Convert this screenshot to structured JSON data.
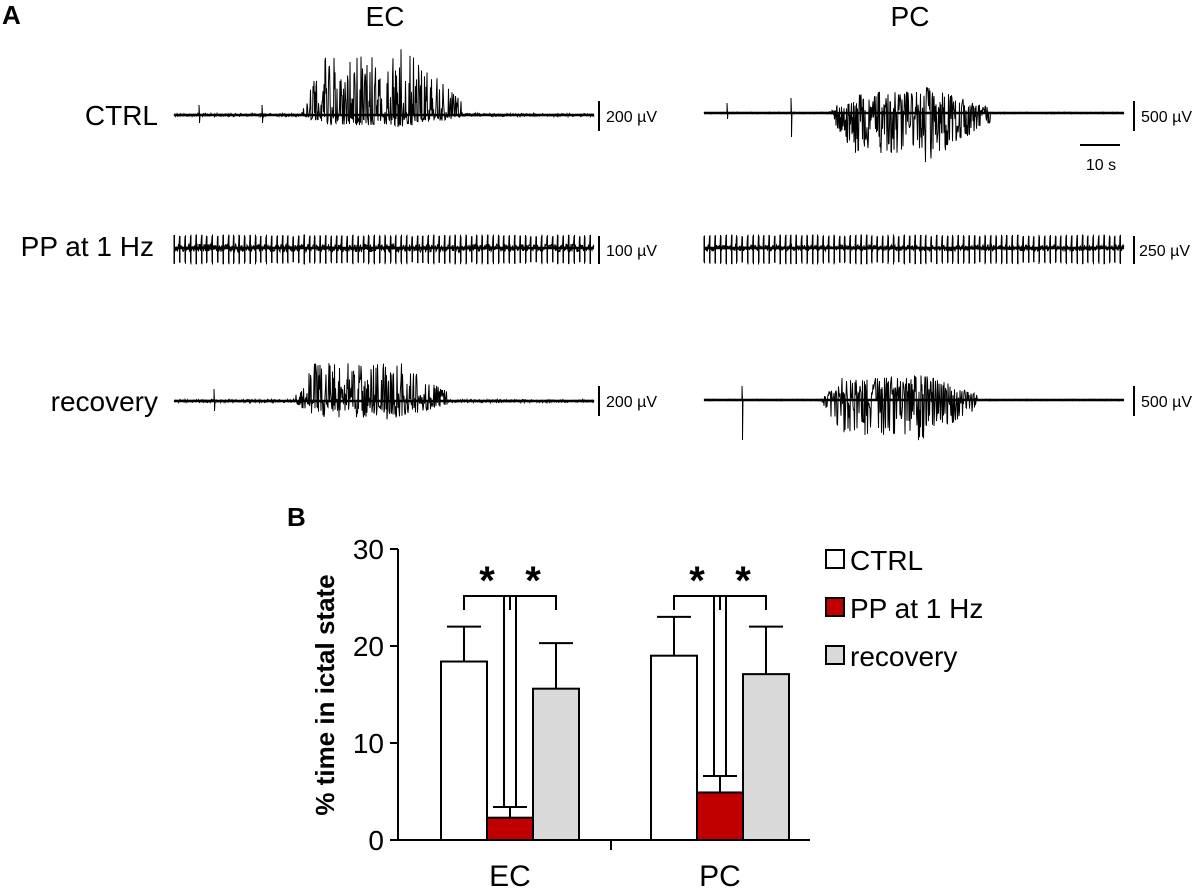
{
  "panel_a": {
    "label": "A",
    "columns": [
      "EC",
      "PC"
    ],
    "rows": [
      "CTRL",
      "PP at 1 Hz",
      "recovery"
    ],
    "scale_bars": [
      [
        "200 µV",
        "500 µV"
      ],
      [
        "100 µV",
        "250 µV"
      ],
      [
        "200 µV",
        "500 µV"
      ]
    ],
    "time_scale": "10 s"
  },
  "panel_b": {
    "label": "B",
    "significance_marker": "*"
  },
  "colors": {
    "ctrl": "#ffffff",
    "pp": "#c00000",
    "recovery": "#d9d9d9",
    "trace": "#000000"
  },
  "chart_data": {
    "type": "bar",
    "categories": [
      "EC",
      "PC"
    ],
    "series": [
      {
        "name": "CTRL",
        "values": [
          18.4,
          19.0
        ],
        "errors": [
          3.6,
          4.0
        ]
      },
      {
        "name": "PP at 1 Hz",
        "values": [
          2.3,
          4.9
        ],
        "errors": [
          1.1,
          1.7
        ]
      },
      {
        "name": "recovery",
        "values": [
          15.6,
          17.1
        ],
        "errors": [
          4.7,
          4.9
        ]
      }
    ],
    "ylabel": "% time in ictal state",
    "xlabel": "",
    "ylim": [
      0,
      30
    ],
    "yticks": [
      0,
      10,
      20,
      30
    ],
    "significance": [
      {
        "category": "EC",
        "pair": [
          "CTRL",
          "PP at 1 Hz"
        ],
        "marker": "*"
      },
      {
        "category": "EC",
        "pair": [
          "PP at 1 Hz",
          "recovery"
        ],
        "marker": "*"
      },
      {
        "category": "PC",
        "pair": [
          "CTRL",
          "PP at 1 Hz"
        ],
        "marker": "*"
      },
      {
        "category": "PC",
        "pair": [
          "PP at 1 Hz",
          "recovery"
        ],
        "marker": "*"
      }
    ],
    "legend_position": "right"
  }
}
